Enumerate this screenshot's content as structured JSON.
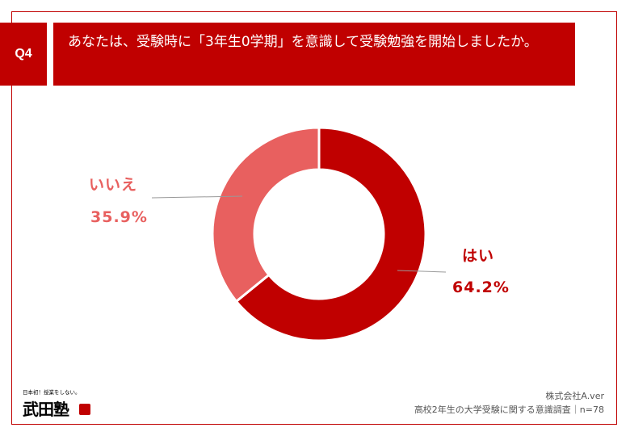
{
  "question": {
    "badge": "Q4",
    "text": "あなたは、受験時に「3年生0学期」を意識して受験勉強を開始しましたか。"
  },
  "chart_data": {
    "type": "pie",
    "title": "",
    "categories": [
      "はい",
      "いいえ"
    ],
    "values": [
      64.2,
      35.9
    ],
    "value_labels": [
      "64.2%",
      "35.9%"
    ],
    "colors": [
      "#c00000",
      "#e8605f"
    ],
    "donut": true
  },
  "logo": {
    "tagline": "日本初！授業をしない。",
    "name": "武田塾"
  },
  "source": {
    "company": "株式会社A.ver",
    "survey": "高校2年生の大学受験に関する意識調査｜n=78"
  }
}
